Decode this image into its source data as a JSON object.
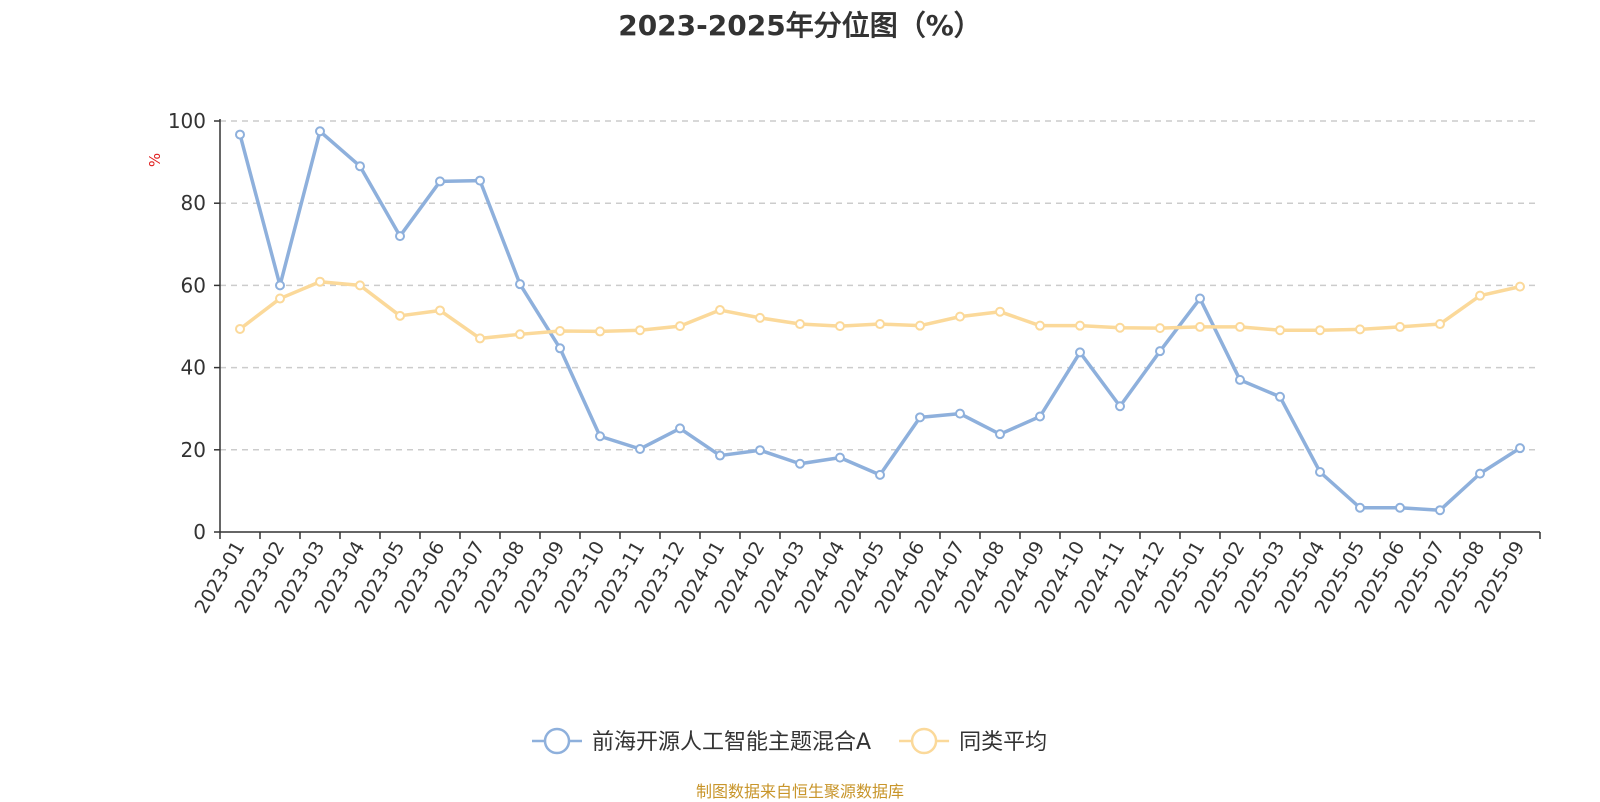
{
  "title": "2023-2025年分位图（%）",
  "source_note": "制图数据来自恒生聚源数据库",
  "y_unit": "%",
  "colors": {
    "fund": "#8eb0dc",
    "average": "#fbd99a",
    "grid": "#cccccc",
    "axis": "#333333"
  },
  "chart_data": {
    "type": "line",
    "title": "2023-2025年分位图（%）",
    "xlabel": "",
    "ylabel": "%",
    "ylim": [
      0,
      100
    ],
    "yticks": [
      0,
      20,
      40,
      60,
      80,
      100
    ],
    "grid": true,
    "legend_position": "bottom",
    "categories": [
      "2023-01",
      "2023-02",
      "2023-03",
      "2023-04",
      "2023-05",
      "2023-06",
      "2023-07",
      "2023-08",
      "2023-09",
      "2023-10",
      "2023-11",
      "2023-12",
      "2024-01",
      "2024-02",
      "2024-03",
      "2024-04",
      "2024-05",
      "2024-06",
      "2024-07",
      "2024-08",
      "2024-09",
      "2024-10",
      "2024-11",
      "2024-12",
      "2025-01",
      "2025-02",
      "2025-03",
      "2025-04",
      "2025-05",
      "2025-06",
      "2025-07",
      "2025-08",
      "2025-09"
    ],
    "series": [
      {
        "name": "前海开源人工智能主题混合A",
        "values": [
          96.7,
          60.0,
          97.5,
          89.0,
          72.0,
          85.3,
          85.5,
          60.3,
          44.7,
          23.3,
          20.2,
          25.2,
          18.6,
          19.9,
          16.6,
          18.1,
          13.9,
          27.9,
          28.8,
          23.8,
          28.1,
          43.7,
          30.6,
          44.0,
          56.8,
          37.0,
          32.9,
          14.6,
          5.9,
          5.9,
          5.3,
          14.2,
          20.4
        ]
      },
      {
        "name": "同类平均",
        "values": [
          49.4,
          56.8,
          60.9,
          60.0,
          52.6,
          53.9,
          47.1,
          48.1,
          48.9,
          48.8,
          49.1,
          50.1,
          54.0,
          52.1,
          50.6,
          50.1,
          50.6,
          50.2,
          52.4,
          53.6,
          50.2,
          50.2,
          49.7,
          49.6,
          49.9,
          49.9,
          49.1,
          49.1,
          49.3,
          49.9,
          50.6,
          57.5,
          59.7
        ]
      }
    ]
  }
}
